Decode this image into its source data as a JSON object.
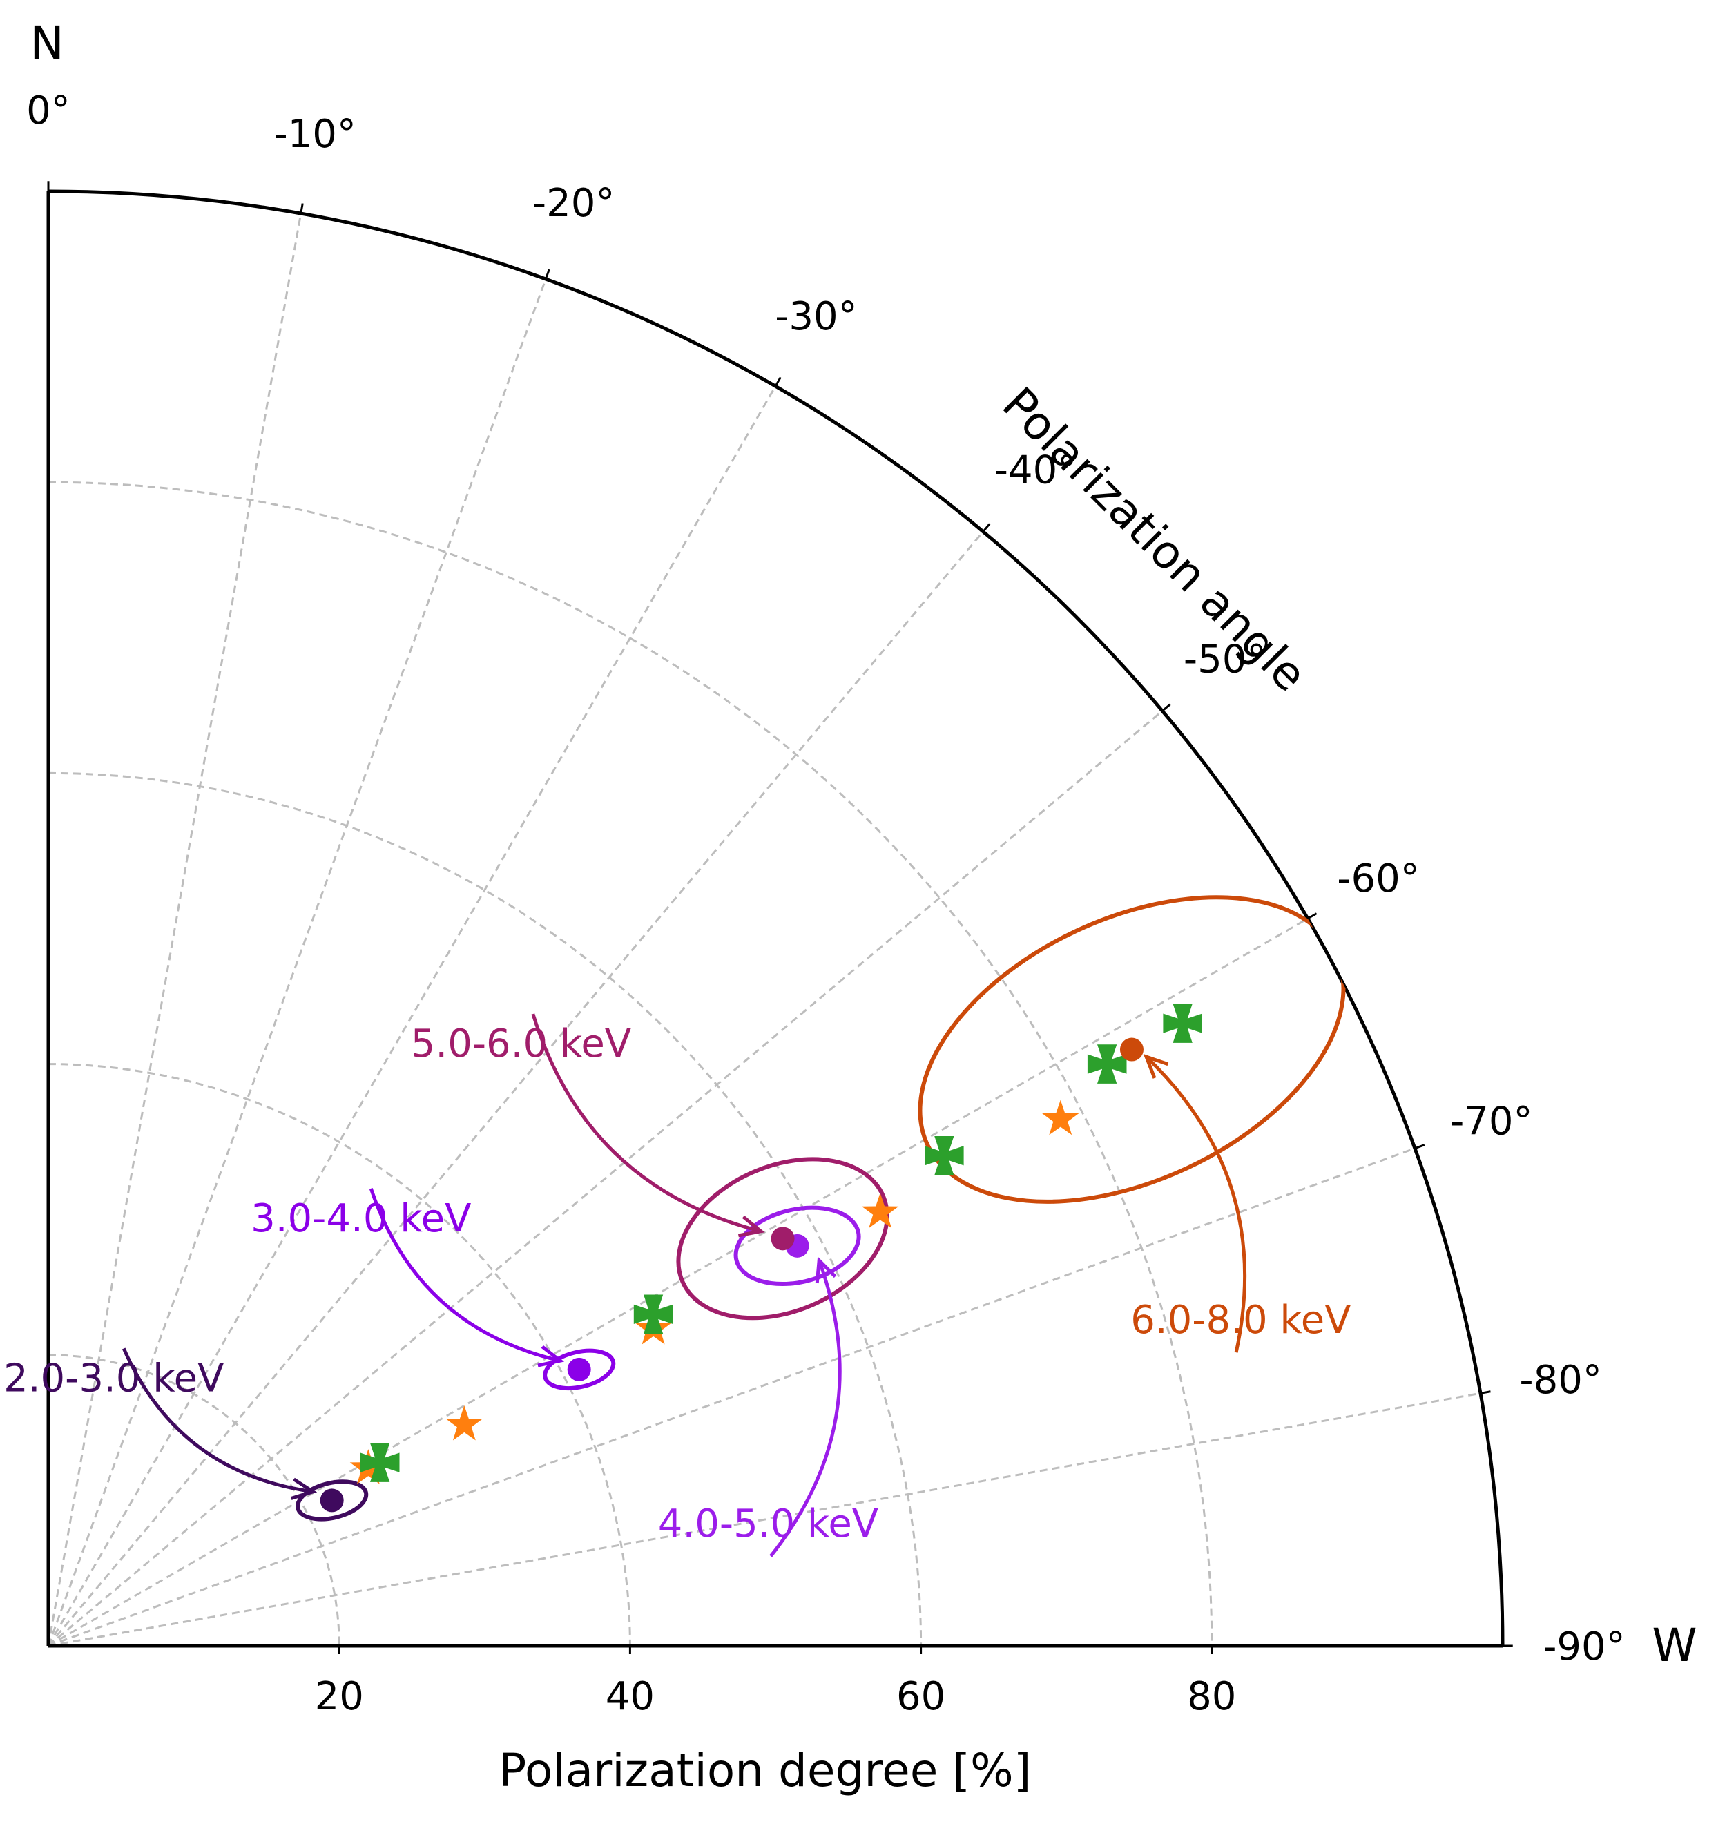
{
  "chart_data": {
    "type": "scatter",
    "projection": "polar-quadrant",
    "xlabel": "Polarization degree [%]",
    "angle_axis_label": "Polarization angle",
    "north_label": "N",
    "west_label": "W",
    "radial_range": [
      0,
      100
    ],
    "angle_range_deg": [
      0,
      -90
    ],
    "radial_ticks": [
      {
        "value": 20,
        "label": "20"
      },
      {
        "value": 40,
        "label": "40"
      },
      {
        "value": 60,
        "label": "60"
      },
      {
        "value": 80,
        "label": "80"
      }
    ],
    "angle_ticks": [
      {
        "value": 0,
        "label": "0°"
      },
      {
        "value": -10,
        "label": "-10°"
      },
      {
        "value": -20,
        "label": "-20°"
      },
      {
        "value": -30,
        "label": "-30°"
      },
      {
        "value": -40,
        "label": "-40°"
      },
      {
        "value": -50,
        "label": "-50°"
      },
      {
        "value": -60,
        "label": "-60°"
      },
      {
        "value": -70,
        "label": "-70°"
      },
      {
        "value": -80,
        "label": "-80°"
      },
      {
        "value": -90,
        "label": "-90°"
      }
    ],
    "grid": true,
    "measurements": [
      {
        "name": "2.0-3.0 keV",
        "color": "#3f0a5e",
        "x": 19.5,
        "y": 10.0,
        "ellipse": {
          "rx": 2.4,
          "ry": 1.2,
          "rotation_deg": -13
        }
      },
      {
        "name": "3.0-4.0 keV",
        "color": "#8b00e8",
        "x": 36.5,
        "y": 19.0,
        "ellipse": {
          "rx": 2.4,
          "ry": 1.2,
          "rotation_deg": -13
        }
      },
      {
        "name": "4.0-5.0 keV",
        "color": "#9b1dea",
        "x": 51.5,
        "y": 27.5,
        "ellipse": {
          "rx": 4.3,
          "ry": 2.5,
          "rotation_deg": -13
        }
      },
      {
        "name": "5.0-6.0 keV",
        "color": "#a01d6a",
        "x": 50.5,
        "y": 28.0,
        "ellipse": {
          "rx": 7.5,
          "ry": 5.0,
          "rotation_deg": -23
        }
      },
      {
        "name": "6.0-8.0 keV",
        "color": "#cc4a0a",
        "x": 74.5,
        "y": 41.0,
        "ellipse": {
          "rx": 15.5,
          "ry": 9.0,
          "rotation_deg": -25
        }
      }
    ],
    "model_series": [
      {
        "name": "model-star",
        "marker": "star",
        "color": "#ff7f0e",
        "points": [
          {
            "x": 22,
            "y": 12.2
          },
          {
            "x": 28.6,
            "y": 15.2
          },
          {
            "x": 41.6,
            "y": 21.8
          },
          {
            "x": 57.2,
            "y": 29.8
          },
          {
            "x": 69.6,
            "y": 36.2
          }
        ]
      },
      {
        "name": "model-cross",
        "marker": "x",
        "color": "#2ca02c",
        "points": [
          {
            "x": 22.8,
            "y": 12.6
          },
          {
            "x": 41.6,
            "y": 22.8
          },
          {
            "x": 61.6,
            "y": 33.7
          },
          {
            "x": 72.8,
            "y": 40.0
          },
          {
            "x": 78,
            "y": 42.8
          }
        ]
      }
    ],
    "annotations": [
      {
        "text": "2.0-3.0 keV",
        "color": "#3f0a5e",
        "text_x": 4.5,
        "text_y": 17.5,
        "target_x": 18.2,
        "target_y": 10.6
      },
      {
        "text": "3.0-4.0 keV",
        "color": "#8b00e8",
        "text_x": 21.5,
        "text_y": 28.5,
        "target_x": 35.2,
        "target_y": 19.6
      },
      {
        "text": "4.0-5.0 keV",
        "color": "#9b1dea",
        "text_x": 49.5,
        "text_y": 7.5,
        "target_x": 53.0,
        "target_y": 26.5
      },
      {
        "text": "5.0-6.0 keV",
        "color": "#a01d6a",
        "text_x": 32.5,
        "text_y": 40.5,
        "target_x": 49.0,
        "target_y": 28.5
      },
      {
        "text": "6.0-8.0 keV",
        "color": "#cc4a0a",
        "text_x": 82.0,
        "text_y": 21.5,
        "target_x": 75.5,
        "target_y": 40.5
      }
    ]
  }
}
